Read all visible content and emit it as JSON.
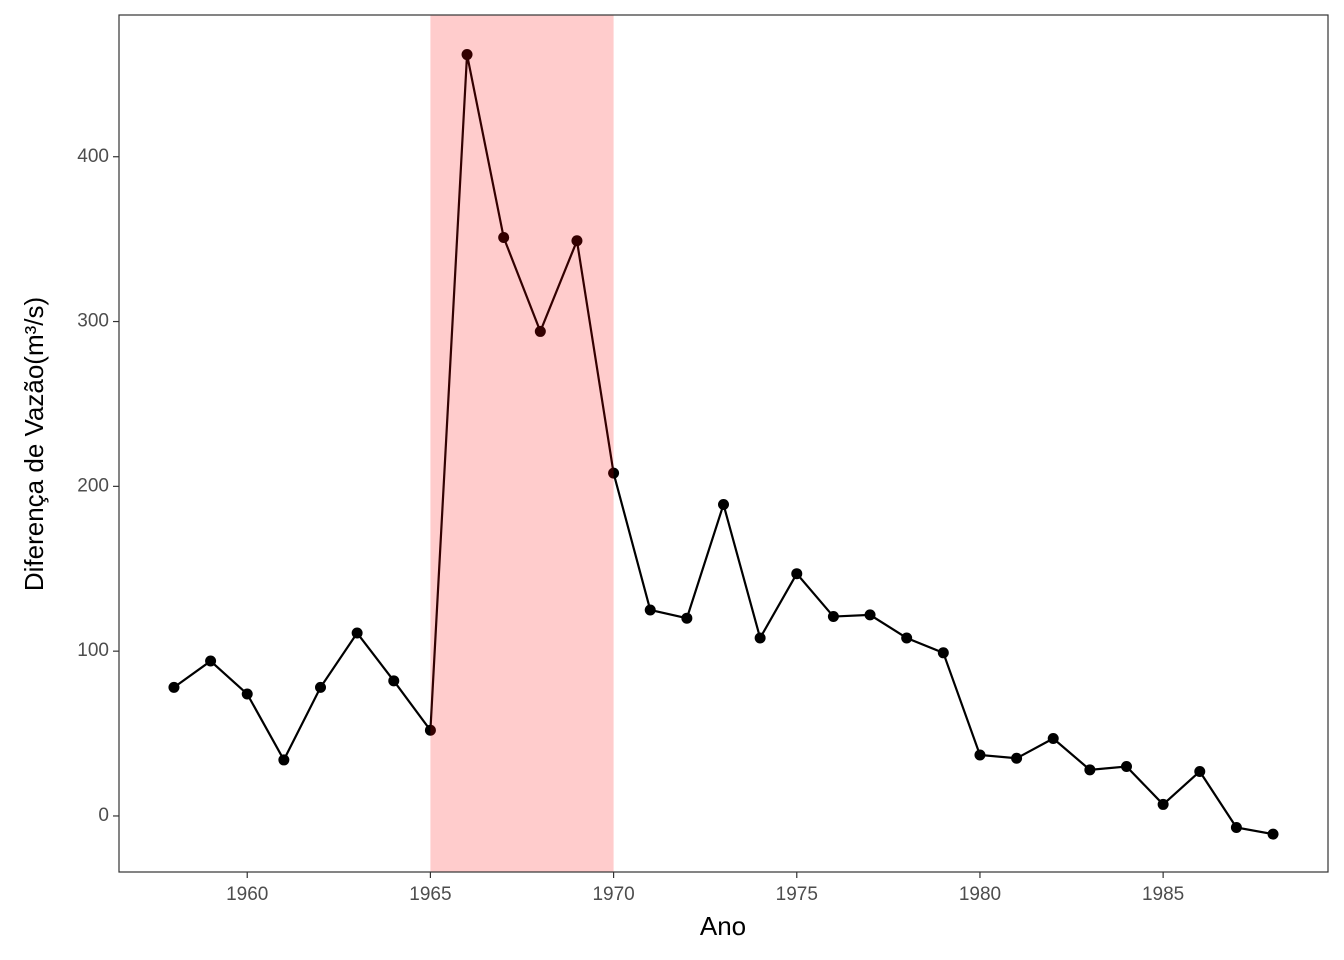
{
  "chart_data": {
    "type": "line",
    "x_label": "Ano",
    "y_label": "Diferença de Vazão(m³/s)",
    "x": [
      1958,
      1959,
      1960,
      1961,
      1962,
      1963,
      1964,
      1965,
      1966,
      1967,
      1968,
      1969,
      1970,
      1971,
      1972,
      1973,
      1974,
      1975,
      1976,
      1977,
      1978,
      1979,
      1980,
      1981,
      1982,
      1983,
      1984,
      1985,
      1986,
      1987,
      1988
    ],
    "values": [
      78,
      94,
      74,
      34,
      78,
      111,
      82,
      52,
      462,
      351,
      294,
      349,
      208,
      125,
      120,
      189,
      108,
      147,
      121,
      122,
      108,
      99,
      37,
      35,
      47,
      28,
      30,
      7,
      27,
      -7,
      -11
    ],
    "color": "#000000",
    "highlight": {
      "xmin": 1965,
      "xmax": 1970,
      "color": "#ff0000",
      "opacity": 0.2
    },
    "xlim": [
      1956.5,
      1989.5
    ],
    "xticks": [
      1960,
      1965,
      1970,
      1975,
      1980,
      1985
    ],
    "ylim": [
      -34,
      486
    ],
    "yticks": [
      0,
      100,
      200,
      300,
      400
    ],
    "grid": false
  }
}
